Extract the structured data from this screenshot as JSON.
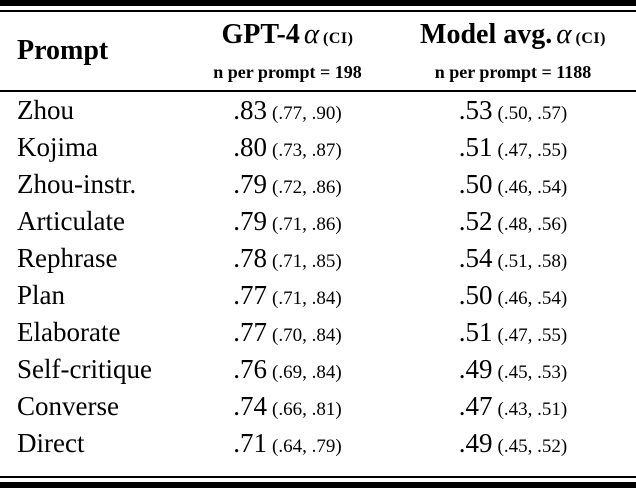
{
  "colors": {
    "background": "#ffffff",
    "ink": "#000000",
    "rule": "#000000"
  },
  "chart_data": {
    "type": "table",
    "header": {
      "prompt": "Prompt",
      "gpt4": {
        "model": "GPT-4",
        "alpha": "α",
        "ci_label": "(CI)",
        "n_note": "n per prompt = 198"
      },
      "model_avg": {
        "model": "Model avg.",
        "alpha": "α",
        "ci_label": "(CI)",
        "n_note": "n per prompt = 1188"
      }
    },
    "rows": [
      {
        "prompt": "Zhou",
        "gpt4_value": ".83",
        "gpt4_ci": "(.77, .90)",
        "avg_value": ".53",
        "avg_ci": "(.50, .57)"
      },
      {
        "prompt": "Kojima",
        "gpt4_value": ".80",
        "gpt4_ci": "(.73, .87)",
        "avg_value": ".51",
        "avg_ci": "(.47, .55)"
      },
      {
        "prompt": "Zhou-instr.",
        "gpt4_value": ".79",
        "gpt4_ci": "(.72, .86)",
        "avg_value": ".50",
        "avg_ci": "(.46, .54)"
      },
      {
        "prompt": "Articulate",
        "gpt4_value": ".79",
        "gpt4_ci": "(.71, .86)",
        "avg_value": ".52",
        "avg_ci": "(.48, .56)"
      },
      {
        "prompt": "Rephrase",
        "gpt4_value": ".78",
        "gpt4_ci": "(.71, .85)",
        "avg_value": ".54",
        "avg_ci": "(.51, .58)"
      },
      {
        "prompt": "Plan",
        "gpt4_value": ".77",
        "gpt4_ci": "(.71, .84)",
        "avg_value": ".50",
        "avg_ci": "(.46, .54)"
      },
      {
        "prompt": "Elaborate",
        "gpt4_value": ".77",
        "gpt4_ci": "(.70, .84)",
        "avg_value": ".51",
        "avg_ci": "(.47, .55)"
      },
      {
        "prompt": "Self-critique",
        "gpt4_value": ".76",
        "gpt4_ci": "(.69, .84)",
        "avg_value": ".49",
        "avg_ci": "(.45, .53)"
      },
      {
        "prompt": "Converse",
        "gpt4_value": ".74",
        "gpt4_ci": "(.66, .81)",
        "avg_value": ".47",
        "avg_ci": "(.43, .51)"
      },
      {
        "prompt": "Direct",
        "gpt4_value": ".71",
        "gpt4_ci": "(.64, .79)",
        "avg_value": ".49",
        "avg_ci": "(.45, .52)"
      }
    ]
  }
}
